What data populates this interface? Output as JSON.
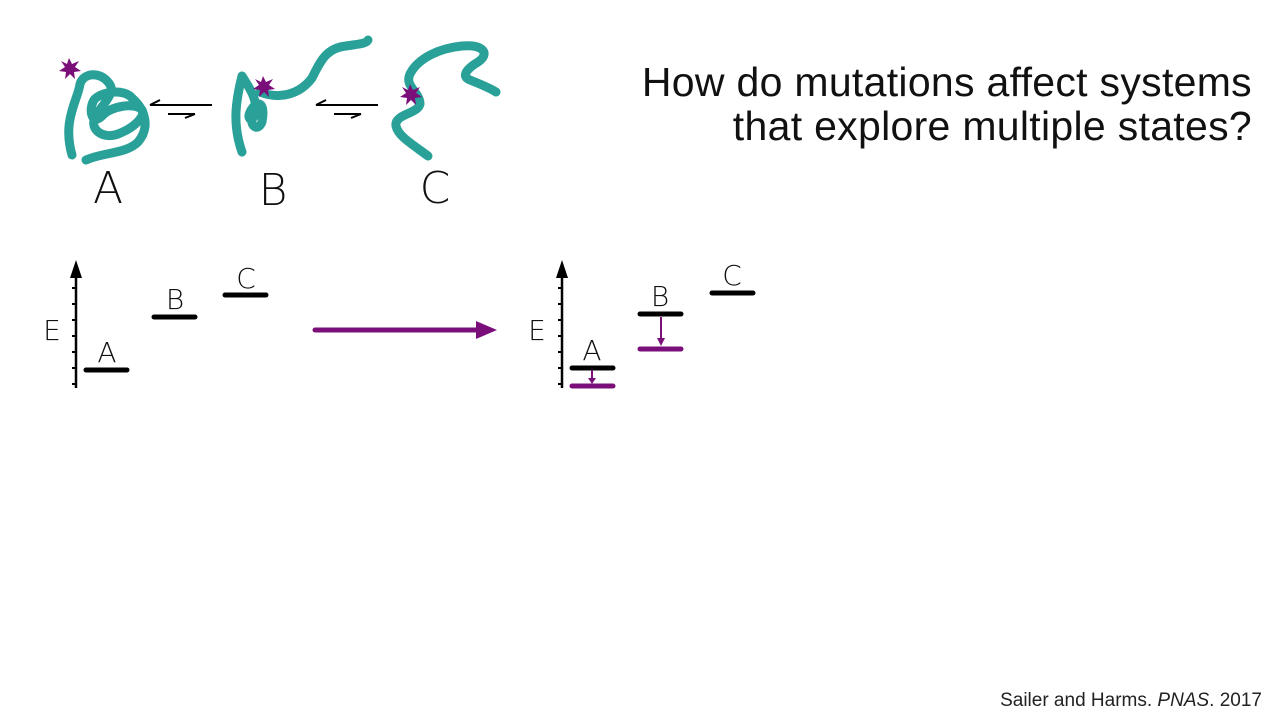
{
  "title": {
    "line1": "How do mutations affect systems",
    "line2": "that explore multiple states?"
  },
  "states": [
    "A",
    "B",
    "C"
  ],
  "energy_axis_label": "E",
  "citation": {
    "authors": "Sailer and Harms.",
    "journal": "PNAS",
    "year": ". 2017"
  },
  "colors": {
    "protein": "#2aa198",
    "mutation_star": "#7a0f7a",
    "accent": "#7a0f7a",
    "levels": "#000000"
  }
}
